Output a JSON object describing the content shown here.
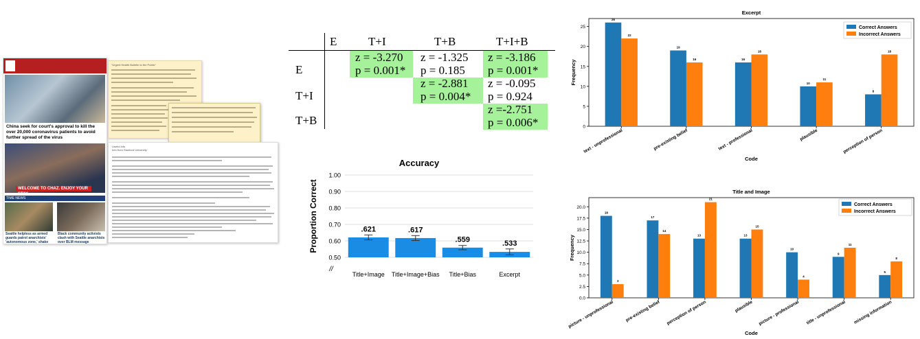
{
  "news": {
    "headline1": "China seek for court's approval to kill the over 20,000 coronavirus patients to avoid further spread of the virus",
    "banner": "WELCOME TO CHAZ. ENJOY YOUR STAY.",
    "bar2": "TIME NEWS",
    "sub1": "Seattle helpless as armed guards patrol anarchists' 'autonomous zone,' shake down",
    "sub2": "Black community activists clash with Seattle anarchists over BLM message"
  },
  "doc1": {
    "title": "\"Urgent Health Bulletin to the Public\""
  },
  "doc2": {
    "title": "Useful Info",
    "subtitle": "Info from Stanford University"
  },
  "ztable": {
    "col_headers": [
      "E",
      "T+I",
      "T+B",
      "T+I+B"
    ],
    "row_headers": [
      "E",
      "T+I",
      "T+B"
    ],
    "cells": [
      {
        "z": "z = -3.270",
        "p": "p = 0.001*",
        "green": true
      },
      {
        "z": "z = -1.325",
        "p": "p = 0.185",
        "green": false
      },
      {
        "z": "z = -3.186",
        "p": "p = 0.001*",
        "green": true
      },
      {
        "z": "z = -2.881",
        "p": "p = 0.004*",
        "green": true
      },
      {
        "z": "z = -0.095",
        "p": "p = 0.924",
        "green": false
      },
      {
        "z": "z =-2.751",
        "p": "p = 0.006*",
        "green": true
      }
    ],
    "highlight_color": "#a6f29b"
  },
  "chart_data": [
    {
      "type": "bar",
      "title": "Accuracy",
      "ylabel": "Proportion Correct",
      "xlabel": "",
      "categories": [
        "Title+Image",
        "Title+Image+Bias",
        "Title+Bias",
        "Excerpt"
      ],
      "values": [
        0.621,
        0.617,
        0.559,
        0.533
      ],
      "value_labels": [
        ".621",
        ".617",
        ".559",
        ".533"
      ],
      "error": [
        0.015,
        0.015,
        0.013,
        0.018
      ],
      "ylim": [
        0.5,
        1.0
      ],
      "ytick_labels": [
        "0.50",
        "0.60",
        "0.70",
        "0.80",
        "0.90",
        "1.00"
      ],
      "axis_break": "//",
      "grid": true,
      "color": "#1b8ce3"
    },
    {
      "type": "bar",
      "title": "Excerpt",
      "xlabel": "Code",
      "ylabel": "Frequency",
      "categories": [
        "text - unprofessional",
        "pre-existing belief",
        "text - professional",
        "plausible",
        "perception of person"
      ],
      "series": [
        {
          "name": "Correct Answers",
          "values": [
            26,
            19,
            16,
            10,
            8
          ],
          "color": "#1f77b4"
        },
        {
          "name": "Incorrect Answers",
          "values": [
            22,
            16,
            18,
            11,
            18
          ],
          "color": "#ff7f0e"
        }
      ],
      "ylim": [
        0,
        27
      ],
      "yticks": [
        0,
        5,
        10,
        15,
        20,
        25
      ],
      "legend": "top-right",
      "grid": false
    },
    {
      "type": "bar",
      "title": "Title and Image",
      "xlabel": "Code",
      "ylabel": "Frequency",
      "categories": [
        "picture - unprofessional",
        "pre-existing belief",
        "perception of person",
        "plausible",
        "picture - professional",
        "title - unprofessional",
        "missing information"
      ],
      "series": [
        {
          "name": "Correct Answers",
          "values": [
            18,
            17,
            13,
            13,
            10,
            9,
            5
          ],
          "color": "#1f77b4"
        },
        {
          "name": "Incorrect Answers",
          "values": [
            3,
            14,
            21,
            15,
            4,
            11,
            8
          ],
          "color": "#ff7f0e"
        }
      ],
      "ylim": [
        0,
        22
      ],
      "yticks": [
        "0.0",
        "2.5",
        "5.0",
        "7.5",
        "10.0",
        "12.5",
        "15.0",
        "17.5",
        "20.0"
      ],
      "legend": "top-right",
      "grid": false
    }
  ]
}
